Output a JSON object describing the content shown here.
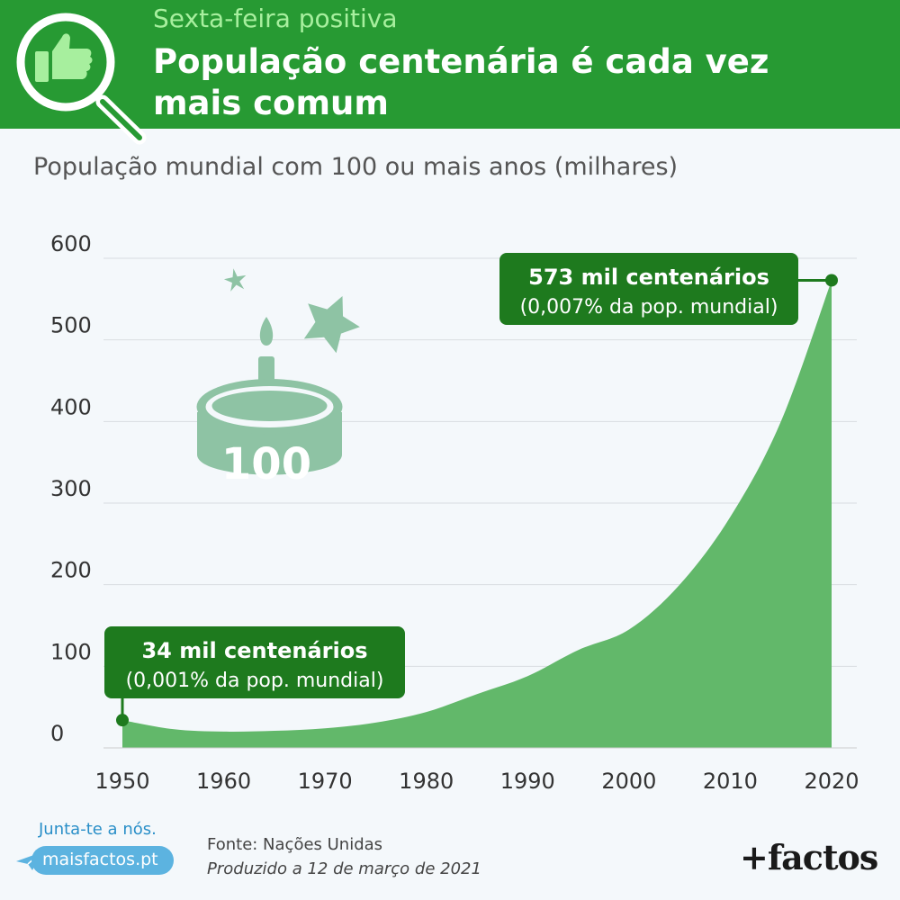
{
  "header": {
    "kicker": "Sexta-feira positiva",
    "title": "População centenária é cada vez mais comum",
    "icon": "magnifier-thumbs-up-icon"
  },
  "colors": {
    "header_bg": "#279a33",
    "area_fill": "#62b86a",
    "callout_bg": "#1e7a1e",
    "illustration": "#8ec3a4"
  },
  "chart_data": {
    "type": "area",
    "subtitle": "População mundial com 100 ou mais anos (milhares)",
    "x": [
      1950,
      1955,
      1960,
      1965,
      1970,
      1975,
      1980,
      1985,
      1990,
      1995,
      2000,
      2005,
      2010,
      2015,
      2020
    ],
    "values": [
      34,
      23,
      20,
      21,
      24,
      31,
      44,
      66,
      88,
      120,
      145,
      200,
      283,
      400,
      573
    ],
    "xticks": [
      "1950",
      "1960",
      "1970",
      "1980",
      "1990",
      "2000",
      "2010",
      "2020"
    ],
    "yticks": [
      "0",
      "100",
      "200",
      "300",
      "400",
      "500",
      "600"
    ],
    "xlim": [
      1950,
      2020
    ],
    "ylim": [
      0,
      600
    ],
    "grid": true,
    "annotations": [
      {
        "x": 1950,
        "y": 34,
        "title": "34 mil centenários",
        "text": "(0,001% da pop. mundial)"
      },
      {
        "x": 2020,
        "y": 573,
        "title": "573 mil centenários",
        "text": "(0,007% da pop. mundial)"
      }
    ],
    "illustration": {
      "label": "100",
      "icon": "birthday-cake-icon"
    }
  },
  "footer": {
    "join": "Junta-te a nós.",
    "site": "maisfactos.pt",
    "source": "Fonte: Nações Unidas",
    "produced": "Produzido a 12 de março de 2021",
    "brand": "+factos"
  }
}
